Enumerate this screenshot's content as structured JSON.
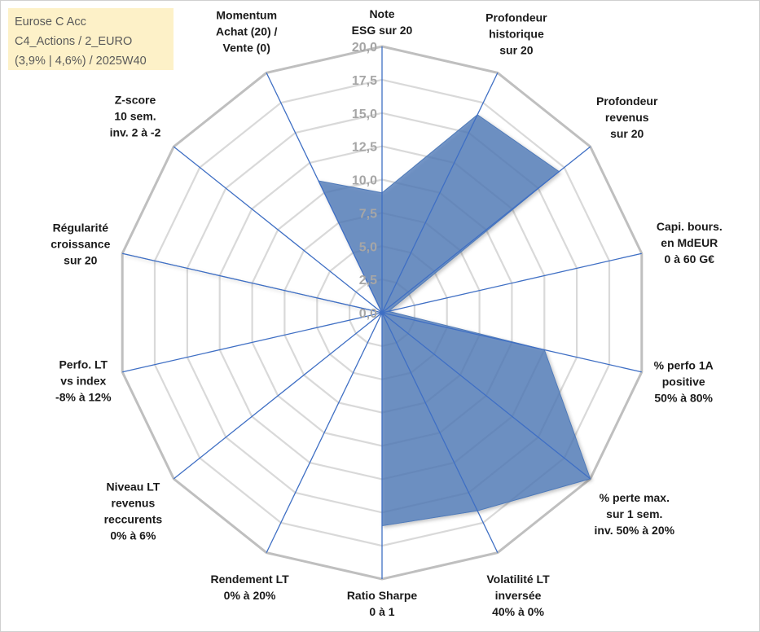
{
  "header": {
    "line1": "Eurose C Acc",
    "line2": "C4_Actions / 2_EURO",
    "line3": "(3,9% | 4,6%) / 2025W40"
  },
  "chart_data": {
    "type": "radar",
    "title": "Eurose C Acc",
    "rmin": 0,
    "rmax": 20,
    "tick_values": [
      0,
      2.5,
      5,
      7.5,
      10,
      12.5,
      15,
      17.5,
      20
    ],
    "tick_labels": [
      "0,0",
      "2,5",
      "5,0",
      "7,5",
      "10,0",
      "12,5",
      "15,0",
      "17,5",
      "20,0"
    ],
    "axes": [
      {
        "label": [
          "Note",
          "ESG sur 20"
        ]
      },
      {
        "label": [
          "Profondeur",
          "historique",
          "sur 20"
        ]
      },
      {
        "label": [
          "Profondeur",
          "revenus",
          "sur 20"
        ]
      },
      {
        "label": [
          "Capi. bours.",
          "en MdEUR",
          "0 à 60 G€"
        ]
      },
      {
        "label": [
          "% perfo 1A",
          "positive",
          "50% à 80%"
        ]
      },
      {
        "label": [
          "% perte max.",
          "sur 1 sem.",
          "inv. 50% à 20%"
        ]
      },
      {
        "label": [
          "Volatilité LT",
          "inversée",
          "40% à 0%"
        ]
      },
      {
        "label": [
          "Ratio Sharpe",
          "0 à 1"
        ]
      },
      {
        "label": [
          "Rendement LT",
          "0% à 20%"
        ]
      },
      {
        "label": [
          "Niveau LT",
          "revenus",
          "reccurents",
          "0% à 6%"
        ]
      },
      {
        "label": [
          "Perfo. LT",
          "vs index",
          "-8% à 12%"
        ]
      },
      {
        "label": [
          "Régularité",
          "croissance",
          "sur 20"
        ]
      },
      {
        "label": [
          "Z-score",
          "10 sem.",
          "inv. 2 à -2"
        ]
      },
      {
        "label": [
          "Momentum",
          "Achat (20) /",
          "Vente (0)"
        ]
      }
    ],
    "series": [
      {
        "name": "Eurose C Acc",
        "color": "#4f7ab8",
        "values": [
          9.0,
          16.5,
          17.0,
          0.5,
          12.5,
          20.0,
          16.5,
          16.0,
          0.0,
          0.0,
          0.0,
          20.0,
          0.0,
          11.0
        ]
      }
    ],
    "grid": true
  }
}
